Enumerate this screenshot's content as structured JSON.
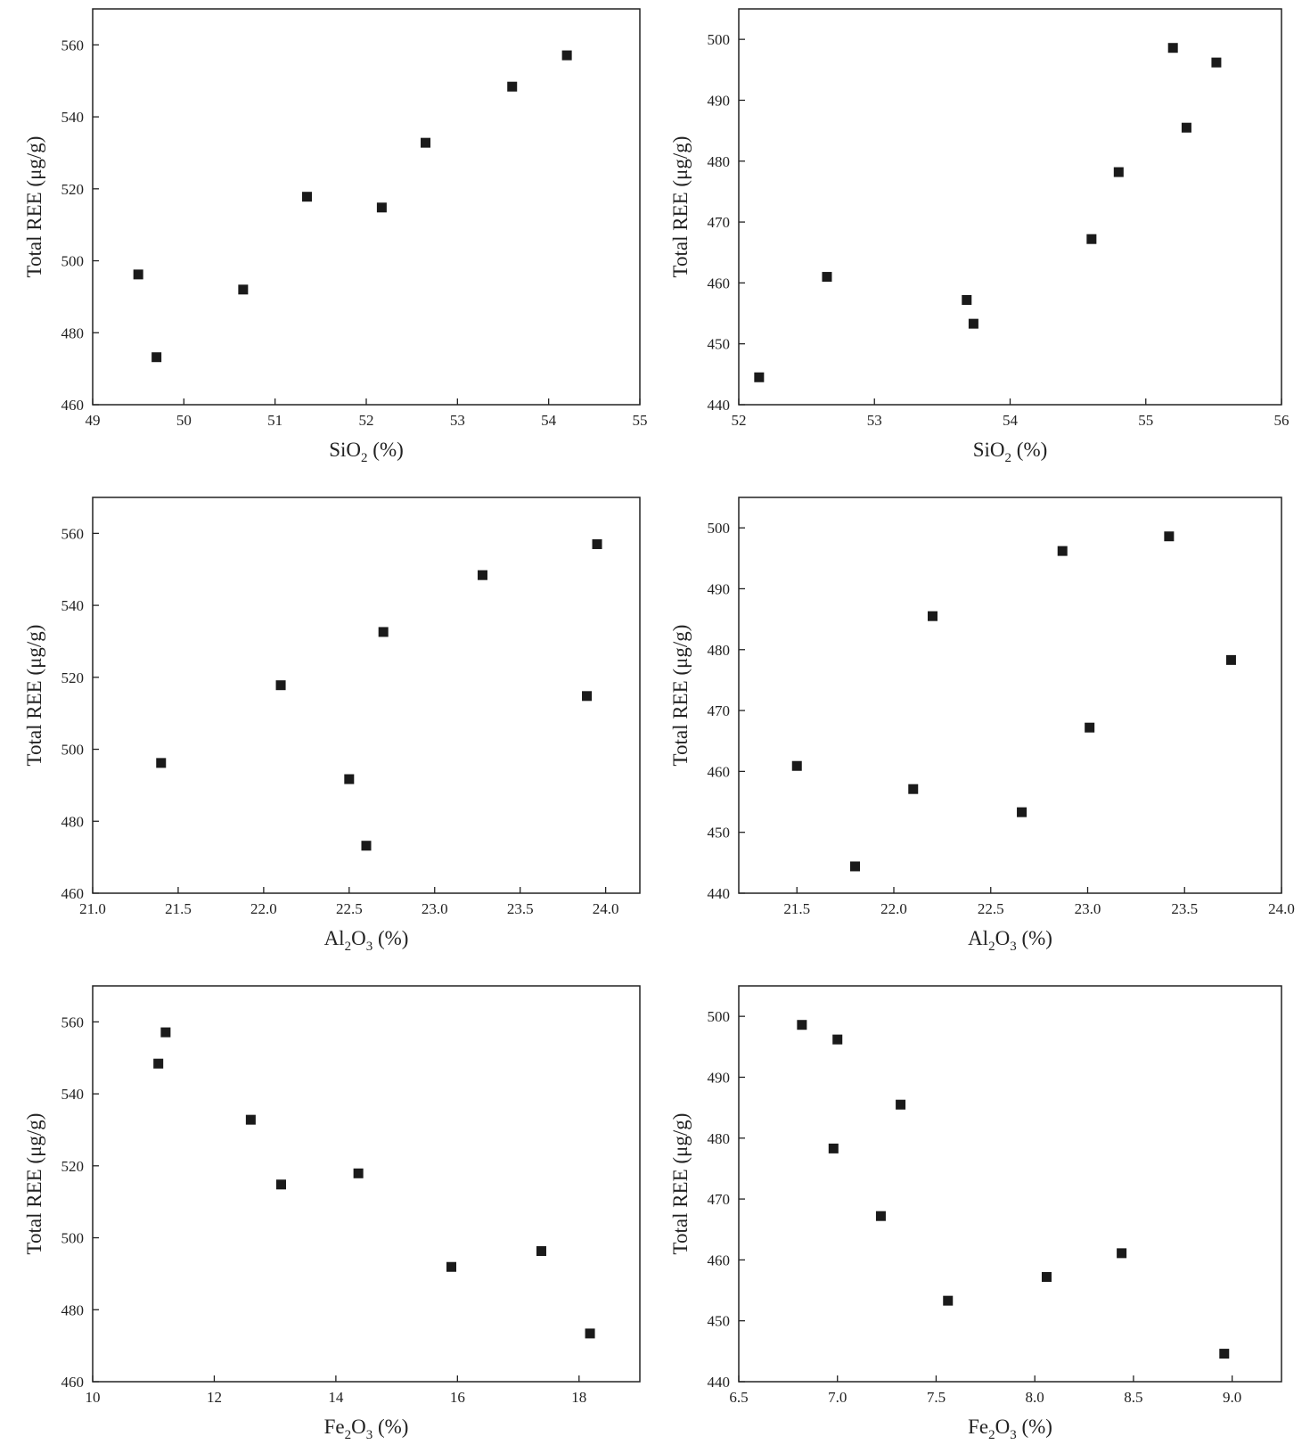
{
  "colors": {
    "frame": "#222222",
    "marker": "#1a1a1a",
    "background": "#ffffff"
  },
  "chart_data": [
    {
      "type": "scatter",
      "xlabel": "SiO2 (%)",
      "xlabel_parts": {
        "pre": "SiO",
        "sub": "2",
        "post": " (%)"
      },
      "ylabel": "Total REE (μg/g)",
      "xlim": [
        49,
        55
      ],
      "ylim": [
        460,
        570
      ],
      "xticks": [
        49,
        50,
        51,
        52,
        53,
        54,
        55
      ],
      "xtick_labels": [
        "49",
        "50",
        "51",
        "52",
        "53",
        "54",
        "55"
      ],
      "yticks": [
        460,
        480,
        500,
        520,
        540,
        560
      ],
      "ytick_labels": [
        "460",
        "480",
        "500",
        "520",
        "540",
        "560"
      ],
      "grid": false,
      "points": [
        {
          "x": 49.5,
          "y": 496.2
        },
        {
          "x": 49.7,
          "y": 473.2
        },
        {
          "x": 50.65,
          "y": 492.0
        },
        {
          "x": 51.35,
          "y": 517.8
        },
        {
          "x": 52.17,
          "y": 514.8
        },
        {
          "x": 52.65,
          "y": 532.8
        },
        {
          "x": 53.6,
          "y": 548.4
        },
        {
          "x": 54.2,
          "y": 557.1
        }
      ]
    },
    {
      "type": "scatter",
      "xlabel": "SiO2 (%)",
      "xlabel_parts": {
        "pre": "SiO",
        "sub": "2",
        "post": " (%)"
      },
      "ylabel": "Total REE (μg/g)",
      "xlim": [
        52,
        56
      ],
      "ylim": [
        440,
        505
      ],
      "xticks": [
        52,
        53,
        54,
        55,
        56
      ],
      "xtick_labels": [
        "52",
        "53",
        "54",
        "55",
        "56"
      ],
      "yticks": [
        440,
        450,
        460,
        470,
        480,
        490,
        500
      ],
      "ytick_labels": [
        "440",
        "450",
        "460",
        "470",
        "480",
        "490",
        "500"
      ],
      "grid": false,
      "points": [
        {
          "x": 52.15,
          "y": 444.5
        },
        {
          "x": 52.65,
          "y": 461.0
        },
        {
          "x": 53.68,
          "y": 457.2
        },
        {
          "x": 53.73,
          "y": 453.3
        },
        {
          "x": 54.6,
          "y": 467.2
        },
        {
          "x": 54.8,
          "y": 478.2
        },
        {
          "x": 55.2,
          "y": 498.6
        },
        {
          "x": 55.3,
          "y": 485.5
        },
        {
          "x": 55.52,
          "y": 496.2
        }
      ]
    },
    {
      "type": "scatter",
      "xlabel": "Al2O3 (%)",
      "xlabel_parts": {
        "pre": "Al",
        "sub": "2",
        "mid": "O",
        "sub2": "3",
        "post": " (%)"
      },
      "ylabel": "Total REE (μg/g)",
      "xlim": [
        21.0,
        24.2
      ],
      "ylim": [
        460,
        570
      ],
      "xticks": [
        21.0,
        21.5,
        22.0,
        22.5,
        23.0,
        23.5,
        24.0
      ],
      "xtick_labels": [
        "21.0",
        "21.5",
        "22.0",
        "22.5",
        "23.0",
        "23.5",
        "24.0"
      ],
      "yticks": [
        460,
        480,
        500,
        520,
        540,
        560
      ],
      "ytick_labels": [
        "460",
        "480",
        "500",
        "520",
        "540",
        "560"
      ],
      "grid": false,
      "points": [
        {
          "x": 21.4,
          "y": 496.2
        },
        {
          "x": 22.1,
          "y": 517.8
        },
        {
          "x": 22.5,
          "y": 491.7
        },
        {
          "x": 22.6,
          "y": 473.2
        },
        {
          "x": 22.7,
          "y": 532.6
        },
        {
          "x": 23.28,
          "y": 548.4
        },
        {
          "x": 23.89,
          "y": 514.8
        },
        {
          "x": 23.95,
          "y": 557.0
        }
      ]
    },
    {
      "type": "scatter",
      "xlabel": "Al2O3 (%)",
      "xlabel_parts": {
        "pre": "Al",
        "sub": "2",
        "mid": "O",
        "sub2": "3",
        "post": " (%)"
      },
      "ylabel": "Total REE (μg/g)",
      "xlim": [
        21.2,
        24.0
      ],
      "ylim": [
        440,
        505
      ],
      "xticks": [
        21.5,
        22.0,
        22.5,
        23.0,
        23.5,
        24.0
      ],
      "xtick_labels": [
        "21.5",
        "22.0",
        "22.5",
        "23.0",
        "23.5",
        "24.0"
      ],
      "yticks": [
        440,
        450,
        460,
        470,
        480,
        490,
        500
      ],
      "ytick_labels": [
        "440",
        "450",
        "460",
        "470",
        "480",
        "490",
        "500"
      ],
      "grid": false,
      "points": [
        {
          "x": 21.5,
          "y": 460.9
        },
        {
          "x": 21.8,
          "y": 444.4
        },
        {
          "x": 22.1,
          "y": 457.1
        },
        {
          "x": 22.2,
          "y": 485.5
        },
        {
          "x": 22.66,
          "y": 453.3
        },
        {
          "x": 22.87,
          "y": 496.2
        },
        {
          "x": 23.01,
          "y": 467.2
        },
        {
          "x": 23.42,
          "y": 498.6
        },
        {
          "x": 23.74,
          "y": 478.3
        }
      ]
    },
    {
      "type": "scatter",
      "xlabel": "Fe2O3 (%)",
      "xlabel_parts": {
        "pre": "Fe",
        "sub": "2",
        "mid": "O",
        "sub2": "3",
        "post": " (%)"
      },
      "ylabel": "Total REE (μg/g)",
      "xlim": [
        10,
        19
      ],
      "ylim": [
        460,
        570
      ],
      "xticks": [
        10,
        12,
        14,
        16,
        18
      ],
      "xtick_labels": [
        "10",
        "12",
        "14",
        "16",
        "18"
      ],
      "yticks": [
        460,
        480,
        500,
        520,
        540,
        560
      ],
      "ytick_labels": [
        "460",
        "480",
        "500",
        "520",
        "540",
        "560"
      ],
      "grid": false,
      "points": [
        {
          "x": 11.08,
          "y": 548.4
        },
        {
          "x": 11.2,
          "y": 557.1
        },
        {
          "x": 12.6,
          "y": 532.8
        },
        {
          "x": 13.1,
          "y": 514.8
        },
        {
          "x": 14.37,
          "y": 517.9
        },
        {
          "x": 15.9,
          "y": 491.9
        },
        {
          "x": 17.38,
          "y": 496.3
        },
        {
          "x": 18.18,
          "y": 473.4
        }
      ]
    },
    {
      "type": "scatter",
      "xlabel": "Fe2O3 (%)",
      "xlabel_parts": {
        "pre": "Fe",
        "sub": "2",
        "mid": "O",
        "sub2": "3",
        "post": " (%)"
      },
      "ylabel": "Total REE (μg/g)",
      "xlim": [
        6.5,
        9.25
      ],
      "ylim": [
        440,
        505
      ],
      "xticks": [
        6.5,
        7.0,
        7.5,
        8.0,
        8.5,
        9.0
      ],
      "xtick_labels": [
        "6.5",
        "7.0",
        "7.5",
        "8.0",
        "8.5",
        "9.0"
      ],
      "yticks": [
        440,
        450,
        460,
        470,
        480,
        490,
        500
      ],
      "ytick_labels": [
        "440",
        "450",
        "460",
        "470",
        "480",
        "490",
        "500"
      ],
      "grid": false,
      "points": [
        {
          "x": 6.82,
          "y": 498.6
        },
        {
          "x": 6.98,
          "y": 478.3
        },
        {
          "x": 7.0,
          "y": 496.2
        },
        {
          "x": 7.22,
          "y": 467.2
        },
        {
          "x": 7.32,
          "y": 485.5
        },
        {
          "x": 7.56,
          "y": 453.3
        },
        {
          "x": 8.06,
          "y": 457.2
        },
        {
          "x": 8.44,
          "y": 461.1
        },
        {
          "x": 8.96,
          "y": 444.6
        }
      ]
    }
  ]
}
